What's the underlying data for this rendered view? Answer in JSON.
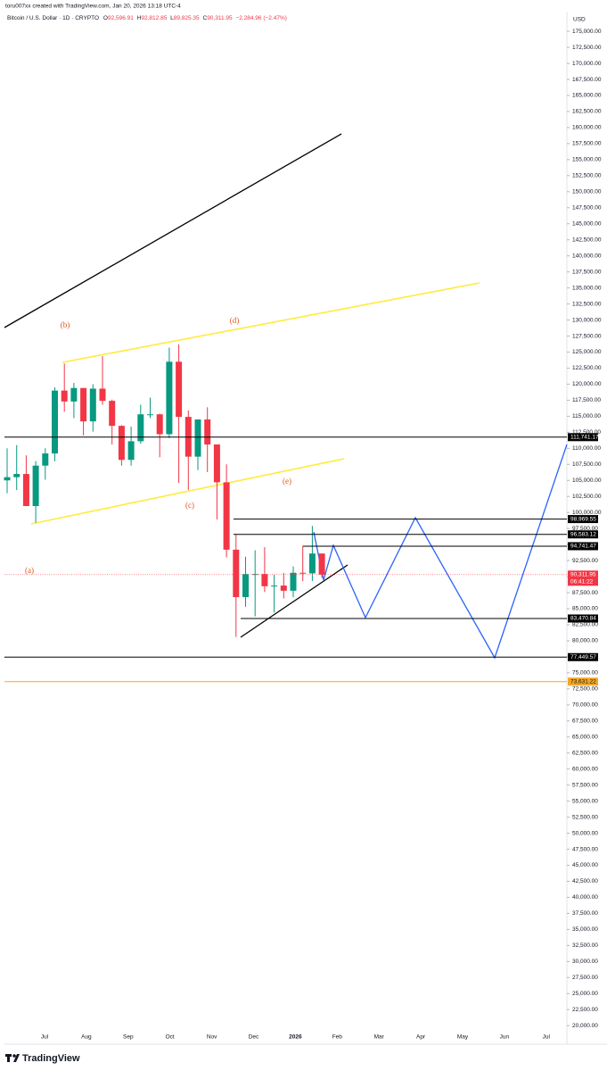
{
  "header": {
    "credit": "toru007xx created with TradingView.com, Jan 20, 2026 13:18 UTC-4",
    "symbol": "Bitcoin / U.S. Dollar · 1D · CRYPTO",
    "quote": [
      "O",
      "92,596.91",
      "H",
      "92,812.85",
      "L",
      "89,825.35",
      "C",
      "90,311.95",
      "−2,284.96 (−2.47%)"
    ]
  },
  "chart_data": {
    "type": "candlestick",
    "currency": "USD",
    "categories": [
      null,
      null,
      null,
      null,
      null,
      null,
      null,
      null,
      null,
      null,
      null,
      null,
      null,
      null,
      null,
      null,
      null,
      null,
      null,
      null,
      null,
      null,
      null,
      null,
      null,
      null,
      null,
      null,
      null,
      null,
      null,
      null,
      null,
      null
    ],
    "open": [
      105000,
      105500,
      106000,
      101000,
      107300,
      109200,
      119000,
      117300,
      119400,
      114200,
      119300,
      117400,
      113500,
      108200,
      111100,
      115300,
      115300,
      112200,
      123500,
      114900,
      108700,
      114500,
      110600,
      104700,
      94200,
      86800,
      90400,
      90400,
      88500,
      88600,
      87800,
      90600,
      90500,
      93600
    ],
    "high": [
      110000,
      110500,
      108900,
      108000,
      110000,
      119500,
      123200,
      120200,
      119400,
      120000,
      124400,
      117600,
      113600,
      113400,
      116800,
      117900,
      115400,
      125700,
      126200,
      115900,
      114000,
      116400,
      110600,
      107500,
      96600,
      93100,
      94100,
      94600,
      90300,
      90600,
      91600,
      94800,
      97900,
      93600
    ],
    "low": [
      103000,
      103500,
      102000,
      98400,
      105100,
      108000,
      115700,
      114700,
      112000,
      112600,
      116800,
      110600,
      107300,
      107300,
      110700,
      114700,
      108600,
      111600,
      104600,
      103500,
      106600,
      106300,
      98900,
      93000,
      80600,
      85300,
      83800,
      87600,
      84400,
      86600,
      86800,
      89300,
      89300,
      89800
    ],
    "close": [
      105500,
      106000,
      101000,
      107300,
      109200,
      119000,
      117300,
      119400,
      114200,
      119300,
      117400,
      113500,
      108200,
      111100,
      115300,
      115300,
      112200,
      123500,
      114900,
      108700,
      114500,
      110600,
      104700,
      94200,
      86800,
      90400,
      90400,
      88500,
      88600,
      87800,
      90600,
      90500,
      93600,
      90311.95
    ],
    "up_color": "#089981",
    "down_color": "#f23645",
    "ylim": [
      17800,
      177800
    ],
    "yticks": [
      {
        "value": 20000,
        "label": "20,000.00"
      },
      {
        "value": 22500,
        "label": "22,500.00"
      },
      {
        "value": 25000,
        "label": "25,000.00"
      },
      {
        "value": 27500,
        "label": "27,500.00"
      },
      {
        "value": 30000,
        "label": "30,000.00"
      },
      {
        "value": 32500,
        "label": "32,500.00"
      },
      {
        "value": 35000,
        "label": "35,000.00"
      },
      {
        "value": 37500,
        "label": "37,500.00"
      },
      {
        "value": 40000,
        "label": "40,000.00"
      },
      {
        "value": 42500,
        "label": "42,500.00"
      },
      {
        "value": 45000,
        "label": "45,000.00"
      },
      {
        "value": 47500,
        "label": "47,500.00"
      },
      {
        "value": 50000,
        "label": "50,000.00"
      },
      {
        "value": 52500,
        "label": "52,500.00"
      },
      {
        "value": 55000,
        "label": "55,000.00"
      },
      {
        "value": 57500,
        "label": "57,500.00"
      },
      {
        "value": 60000,
        "label": "60,000.00"
      },
      {
        "value": 62500,
        "label": "62,500.00"
      },
      {
        "value": 65000,
        "label": "65,000.00"
      },
      {
        "value": 67500,
        "label": "67,500.00"
      },
      {
        "value": 70000,
        "label": "70,000.00"
      },
      {
        "value": 72500,
        "label": "72,500.00"
      },
      {
        "value": 75000,
        "label": "75,000.00"
      },
      {
        "value": 77500,
        "label": "77,500.00"
      },
      {
        "value": 80000,
        "label": "80,000.00"
      },
      {
        "value": 82500,
        "label": "82,500.00"
      },
      {
        "value": 85000,
        "label": "85,000.00"
      },
      {
        "value": 87500,
        "label": "87,500.00"
      },
      {
        "value": 90000,
        "label": "90,000.00"
      },
      {
        "value": 92500,
        "label": "92,500.00"
      },
      {
        "value": 95000,
        "label": "95,000.00"
      },
      {
        "value": 97500,
        "label": "97,500.00"
      },
      {
        "value": 100000,
        "label": "100,000.00"
      },
      {
        "value": 102500,
        "label": "102,500.00"
      },
      {
        "value": 105000,
        "label": "105,000.00"
      },
      {
        "value": 107500,
        "label": "107,500.00"
      },
      {
        "value": 110000,
        "label": "110,000.00"
      },
      {
        "value": 112500,
        "label": "112,500.00"
      },
      {
        "value": 115000,
        "label": "115,000.00"
      },
      {
        "value": 117500,
        "label": "117,500.00"
      },
      {
        "value": 120000,
        "label": "120,000.00"
      },
      {
        "value": 122500,
        "label": "122,500.00"
      },
      {
        "value": 125000,
        "label": "125,000.00"
      },
      {
        "value": 127500,
        "label": "127,500.00"
      },
      {
        "value": 130000,
        "label": "130,000.00"
      },
      {
        "value": 132500,
        "label": "132,500.00"
      },
      {
        "value": 135000,
        "label": "135,000.00"
      },
      {
        "value": 137500,
        "label": "137,500.00"
      },
      {
        "value": 140000,
        "label": "140,000.00"
      },
      {
        "value": 142500,
        "label": "142,500.00"
      },
      {
        "value": 145000,
        "label": "145,000.00"
      },
      {
        "value": 147500,
        "label": "147,500.00"
      },
      {
        "value": 150000,
        "label": "150,000.00"
      },
      {
        "value": 152500,
        "label": "152,500.00"
      },
      {
        "value": 155000,
        "label": "155,000.00"
      },
      {
        "value": 157500,
        "label": "157,500.00"
      },
      {
        "value": 160000,
        "label": "160,000.00"
      },
      {
        "value": 162500,
        "label": "162,500.00"
      },
      {
        "value": 165000,
        "label": "165,000.00"
      },
      {
        "value": 167500,
        "label": "167,500.00"
      },
      {
        "value": 170000,
        "label": "170,000.00"
      },
      {
        "value": 172500,
        "label": "172,500.00"
      },
      {
        "value": 175000,
        "label": "175,000.00"
      }
    ],
    "xticks": [
      "Jul",
      "Aug",
      "Sep",
      "Oct",
      "Nov",
      "Dec",
      "2026",
      "Feb",
      "Mar",
      "Apr",
      "May",
      "Jun",
      "Jul"
    ],
    "levels": [
      {
        "value": 111741.17,
        "label": "111,741.17",
        "color": "#000000"
      },
      {
        "value": 98969.55,
        "label": "98,969.55",
        "color": "#000000"
      },
      {
        "value": 96583.12,
        "label": "96,583.12",
        "color": "#000000"
      },
      {
        "value": 94741.47,
        "label": "94,741.47",
        "color": "#000000"
      },
      {
        "value": 83470.84,
        "label": "83,470.84",
        "color": "#000000"
      },
      {
        "value": 77449.57,
        "label": "77,449.57",
        "color": "#000000"
      },
      {
        "value": 73631.22,
        "label": "73,631.22",
        "color": "#f5a623"
      }
    ],
    "last_price": {
      "value": 90311.95,
      "label": "90,311.95",
      "countdown": "06:41:22",
      "color": "#f23645"
    },
    "annotations": [
      "(a)",
      "(b)",
      "(c)",
      "(d)",
      "(e)"
    ]
  },
  "footer": {
    "brand": "TradingView"
  }
}
